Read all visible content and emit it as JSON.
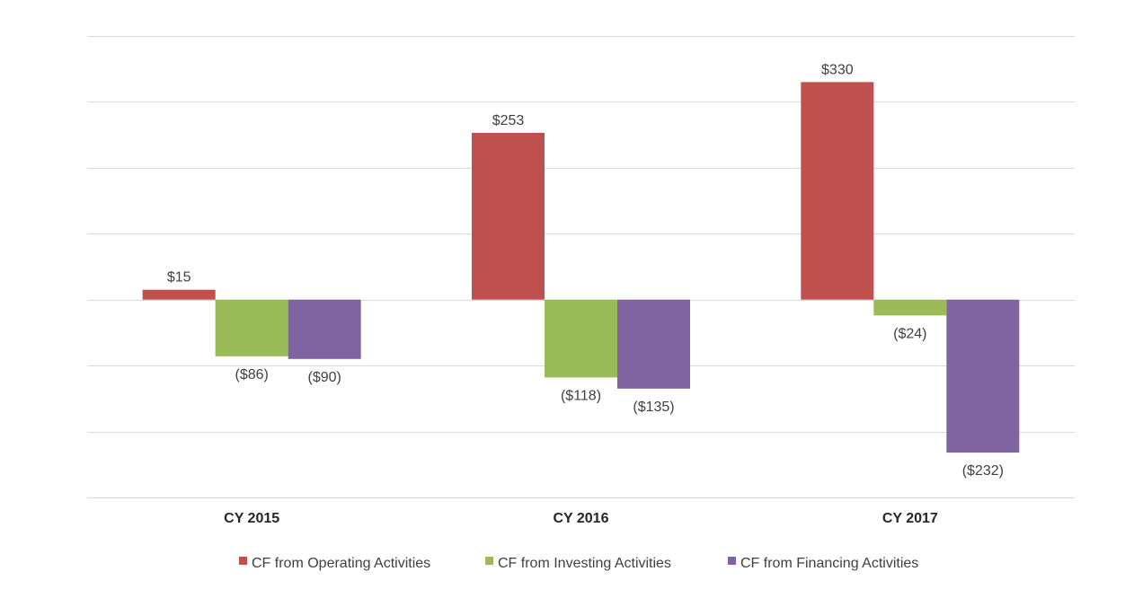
{
  "chart_data": {
    "type": "bar",
    "categories": [
      "CY 2015",
      "CY 2016",
      "CY 2017"
    ],
    "series": [
      {
        "name": "CF from Operating Activities",
        "values": [
          15,
          253,
          330
        ],
        "labels": [
          "$15",
          "$253",
          "$330"
        ],
        "color": "#c0504d"
      },
      {
        "name": "CF from Investing Activities",
        "values": [
          -86,
          -118,
          -24
        ],
        "labels": [
          "($86)",
          "($118)",
          "($24)"
        ],
        "color": "#9bbb59"
      },
      {
        "name": "CF from Financing Activities",
        "values": [
          -90,
          -135,
          -232
        ],
        "labels": [
          "($90)",
          "($135)",
          "($232)"
        ],
        "color": "#8064a2"
      }
    ],
    "ylim": [
      -300,
      400
    ],
    "grid_step": 100,
    "grid": true,
    "legend_position": "bottom",
    "title": "",
    "xlabel": "",
    "ylabel": ""
  }
}
